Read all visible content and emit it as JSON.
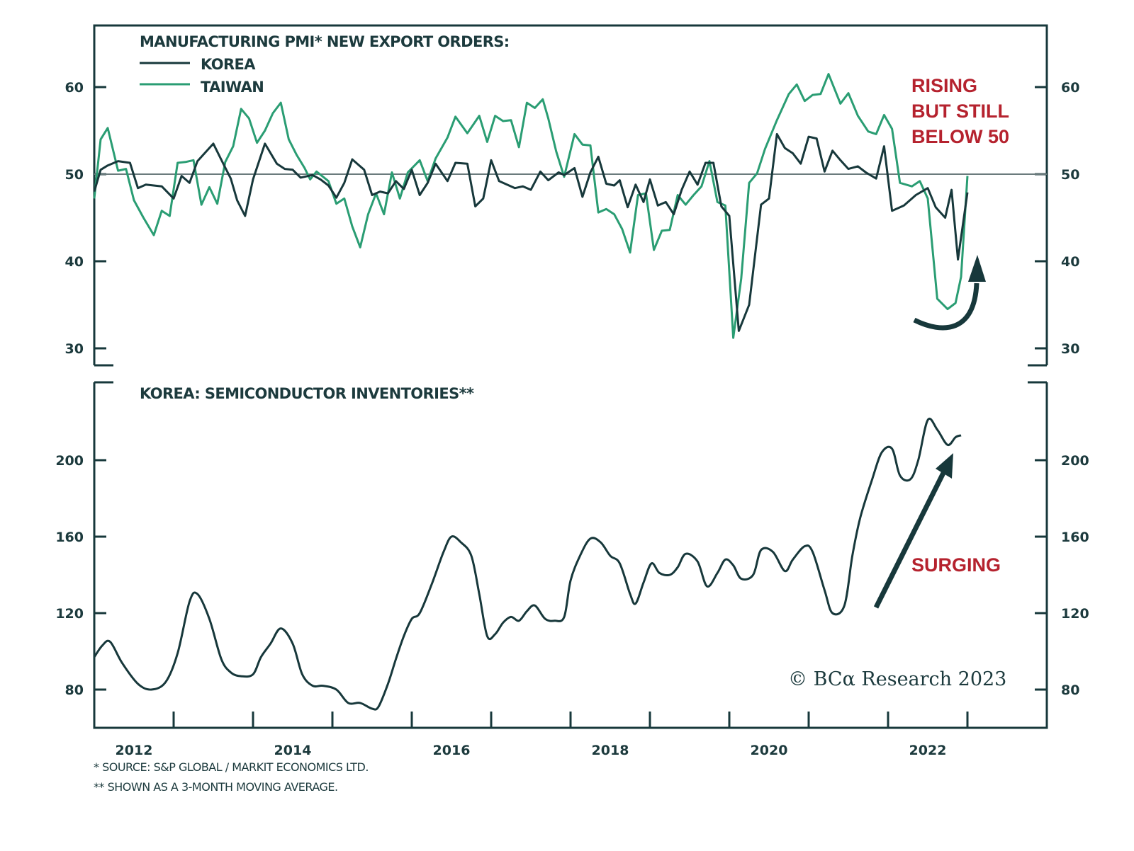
{
  "chart_data": [
    {
      "type": "line",
      "title": "MANUFACTURING PMI* NEW EXPORT ORDERS:",
      "xlabel": "",
      "ylabel": "",
      "ylim": [
        28,
        65
      ],
      "yticks": [
        "30",
        "40",
        "50",
        "60"
      ],
      "ytick_values": [
        30,
        40,
        50,
        60
      ],
      "reference_line": 50,
      "legend": [
        "KOREA",
        "TAIWAN"
      ],
      "legend_placement": "top-left",
      "annotation": [
        "RISING",
        "BUT STILL",
        "BELOW 50"
      ],
      "series": [
        {
          "name": "KOREA",
          "color": "#17383b",
          "x": [
            2012.0,
            2012.08,
            2012.17,
            2012.3,
            2012.45,
            2012.55,
            2012.65,
            2012.85,
            2013.0,
            2013.1,
            2013.2,
            2013.3,
            2013.4,
            2013.5,
            2013.62,
            2013.72,
            2013.8,
            2013.9,
            2014.0,
            2014.15,
            2014.3,
            2014.4,
            2014.5,
            2014.6,
            2014.75,
            2014.85,
            2014.95,
            2015.05,
            2015.15,
            2015.25,
            2015.4,
            2015.5,
            2015.6,
            2015.7,
            2015.8,
            2015.9,
            2016.0,
            2016.1,
            2016.2,
            2016.3,
            2016.45,
            2016.55,
            2016.7,
            2016.8,
            2016.9,
            2017.0,
            2017.1,
            2017.2,
            2017.3,
            2017.4,
            2017.5,
            2017.62,
            2017.72,
            2017.85,
            2017.92,
            2018.05,
            2018.15,
            2018.25,
            2018.35,
            2018.45,
            2018.55,
            2018.62,
            2018.72,
            2018.82,
            2018.92,
            2019.0,
            2019.1,
            2019.2,
            2019.3,
            2019.4,
            2019.5,
            2019.6,
            2019.7,
            2019.8,
            2019.9,
            2020.0,
            2020.12,
            2020.25,
            2020.4,
            2020.5,
            2020.6,
            2020.7,
            2020.8,
            2020.9,
            2021.0,
            2021.1,
            2021.2,
            2021.3,
            2021.4,
            2021.5,
            2021.62,
            2021.72,
            2021.85,
            2021.95,
            2022.05,
            2022.2,
            2022.35,
            2022.5,
            2022.6,
            2022.72,
            2022.8,
            2022.88,
            2023.0
          ],
          "values": [
            48.0,
            50.5,
            51.0,
            51.5,
            51.3,
            48.4,
            48.8,
            48.6,
            47.2,
            49.8,
            49.0,
            51.5,
            52.5,
            53.5,
            51.3,
            49.5,
            47.0,
            45.2,
            49.4,
            53.5,
            51.2,
            50.6,
            50.5,
            49.6,
            49.9,
            49.4,
            48.7,
            47.3,
            49.0,
            51.7,
            50.5,
            47.6,
            48.0,
            47.8,
            49.2,
            48.3,
            50.5,
            47.6,
            49.0,
            51.2,
            49.2,
            51.3,
            51.2,
            46.3,
            47.2,
            51.6,
            49.2,
            48.8,
            48.4,
            48.6,
            48.2,
            50.3,
            49.3,
            50.2,
            49.9,
            50.7,
            47.4,
            50.2,
            52.0,
            48.9,
            48.7,
            49.3,
            46.2,
            48.8,
            46.8,
            49.4,
            46.4,
            46.8,
            45.4,
            48.2,
            50.3,
            48.8,
            51.3,
            51.3,
            46.3,
            45.2,
            32.0,
            35.0,
            46.5,
            47.2,
            54.6,
            53.0,
            52.4,
            51.2,
            54.3,
            54.1,
            50.3,
            52.7,
            51.6,
            50.6,
            50.9,
            50.2,
            49.5,
            53.2,
            45.8,
            46.4,
            47.6,
            48.4,
            46.2,
            45.0,
            48.2,
            40.2,
            47.9
          ]
        },
        {
          "name": "TAIWAN",
          "color": "#2a9d73",
          "x": [
            2012.0,
            2012.08,
            2012.17,
            2012.3,
            2012.4,
            2012.5,
            2012.62,
            2012.75,
            2012.85,
            2012.95,
            2013.05,
            2013.15,
            2013.25,
            2013.35,
            2013.45,
            2013.55,
            2013.65,
            2013.75,
            2013.85,
            2013.95,
            2014.05,
            2014.15,
            2014.25,
            2014.35,
            2014.45,
            2014.55,
            2014.65,
            2014.72,
            2014.8,
            2014.95,
            2015.05,
            2015.15,
            2015.25,
            2015.35,
            2015.45,
            2015.55,
            2015.65,
            2015.75,
            2015.85,
            2015.95,
            2016.1,
            2016.2,
            2016.3,
            2016.45,
            2016.55,
            2016.7,
            2016.85,
            2016.95,
            2017.05,
            2017.15,
            2017.25,
            2017.35,
            2017.45,
            2017.55,
            2017.65,
            2017.72,
            2017.82,
            2017.92,
            2018.05,
            2018.15,
            2018.25,
            2018.35,
            2018.45,
            2018.55,
            2018.65,
            2018.75,
            2018.85,
            2018.95,
            2019.05,
            2019.15,
            2019.25,
            2019.35,
            2019.45,
            2019.55,
            2019.65,
            2019.75,
            2019.85,
            2019.95,
            2020.05,
            2020.15,
            2020.25,
            2020.35,
            2020.45,
            2020.6,
            2020.75,
            2020.85,
            2020.95,
            2021.05,
            2021.15,
            2021.25,
            2021.4,
            2021.5,
            2021.62,
            2021.75,
            2021.85,
            2021.95,
            2022.05,
            2022.15,
            2022.3,
            2022.4,
            2022.5,
            2022.62,
            2022.75,
            2022.85,
            2022.92,
            2023.0
          ],
          "values": [
            47.2,
            54.0,
            55.3,
            50.4,
            50.6,
            47.0,
            45.0,
            43.0,
            45.8,
            45.2,
            51.3,
            51.4,
            51.6,
            46.5,
            48.5,
            46.6,
            51.4,
            53.2,
            57.5,
            56.4,
            53.6,
            55.0,
            57.0,
            58.2,
            54.0,
            52.2,
            50.7,
            49.4,
            50.3,
            49.2,
            46.6,
            47.2,
            44.0,
            41.6,
            45.4,
            47.8,
            45.4,
            50.2,
            47.2,
            50.2,
            51.6,
            49.2,
            51.8,
            54.2,
            56.6,
            54.7,
            56.7,
            53.7,
            56.7,
            56.1,
            56.2,
            53.1,
            58.2,
            57.6,
            58.6,
            56.4,
            52.6,
            49.7,
            54.6,
            53.4,
            53.3,
            45.6,
            46.0,
            45.4,
            43.7,
            41.0,
            47.6,
            47.8,
            41.3,
            43.5,
            43.6,
            47.6,
            46.5,
            47.6,
            48.6,
            51.5,
            46.8,
            46.4,
            31.2,
            38.0,
            49.0,
            50.1,
            52.9,
            56.2,
            59.2,
            60.3,
            58.4,
            59.1,
            59.2,
            61.5,
            58.1,
            59.3,
            56.7,
            54.9,
            54.6,
            56.8,
            55.2,
            49.0,
            48.6,
            49.2,
            47.2,
            35.7,
            34.5,
            35.2,
            38.2,
            49.8
          ]
        }
      ]
    },
    {
      "type": "line",
      "title": "KOREA: SEMICONDUCTOR INVENTORIES**",
      "xlabel": "",
      "ylabel": "",
      "ylim": [
        60,
        232
      ],
      "yticks": [
        "80",
        "120",
        "160",
        "200"
      ],
      "ytick_values": [
        80,
        120,
        160,
        200
      ],
      "annotation": "SURGING",
      "series": [
        {
          "name": "KOREA SEMICONDUCTOR INVENTORIES",
          "color": "#17383b",
          "x": [
            2012.0,
            2012.1,
            2012.2,
            2012.35,
            2012.55,
            2012.72,
            2012.9,
            2013.05,
            2013.2,
            2013.3,
            2013.45,
            2013.6,
            2013.72,
            2013.85,
            2014.0,
            2014.1,
            2014.22,
            2014.35,
            2014.5,
            2014.62,
            2014.75,
            2014.88,
            2015.05,
            2015.2,
            2015.35,
            2015.5,
            2015.58,
            2015.7,
            2015.8,
            2015.9,
            2016.0,
            2016.1,
            2016.25,
            2016.4,
            2016.5,
            2016.62,
            2016.75,
            2016.85,
            2016.95,
            2017.05,
            2017.15,
            2017.25,
            2017.35,
            2017.45,
            2017.55,
            2017.68,
            2017.8,
            2017.92,
            2018.0,
            2018.12,
            2018.25,
            2018.38,
            2018.5,
            2018.62,
            2018.75,
            2018.82,
            2018.92,
            2019.02,
            2019.12,
            2019.25,
            2019.35,
            2019.45,
            2019.6,
            2019.72,
            2019.85,
            2019.95,
            2020.05,
            2020.15,
            2020.3,
            2020.4,
            2020.55,
            2020.7,
            2020.8,
            2020.95,
            2021.05,
            2021.2,
            2021.3,
            2021.45,
            2021.55,
            2021.65,
            2021.8,
            2021.92,
            2022.05,
            2022.15,
            2022.28,
            2022.38,
            2022.5,
            2022.62,
            2022.75,
            2022.85,
            2022.92
          ],
          "values": [
            97,
            103,
            105,
            94,
            83,
            80,
            84,
            99,
            126,
            130,
            117,
            96,
            89,
            87,
            88,
            97,
            104,
            112,
            104,
            88,
            82,
            82,
            80,
            73,
            73,
            70,
            71,
            83,
            96,
            108,
            117,
            120,
            135,
            152,
            160,
            157,
            150,
            130,
            108,
            109,
            115,
            118,
            116,
            121,
            124,
            117,
            116,
            118,
            137,
            150,
            159,
            157,
            150,
            146,
            130,
            125,
            136,
            146,
            141,
            140,
            144,
            151,
            147,
            134,
            141,
            148,
            145,
            138,
            140,
            153,
            152,
            142,
            148,
            155,
            152,
            132,
            120,
            124,
            150,
            170,
            190,
            204,
            206,
            192,
            190,
            200,
            221,
            216,
            208,
            212,
            213
          ]
        }
      ]
    }
  ],
  "x_axis": {
    "tick_labels": [
      "2012",
      "2014",
      "2016",
      "2018",
      "2020",
      "2022"
    ],
    "tick_label_years": [
      2012,
      2014,
      2016,
      2018,
      2020,
      2022
    ],
    "range": [
      2012,
      2024
    ]
  },
  "footnotes": [
    "*  SOURCE: S&P GLOBAL / MARKIT ECONOMICS LTD.",
    "** SHOWN AS A 3-MONTH MOVING AVERAGE."
  ],
  "copyright": "© BCα Research 2023",
  "colors": {
    "axis": "#17383b",
    "korea": "#17383b",
    "taiwan": "#2a9d73",
    "annotation": "#b5222e",
    "reference": "#6b7b7d"
  }
}
